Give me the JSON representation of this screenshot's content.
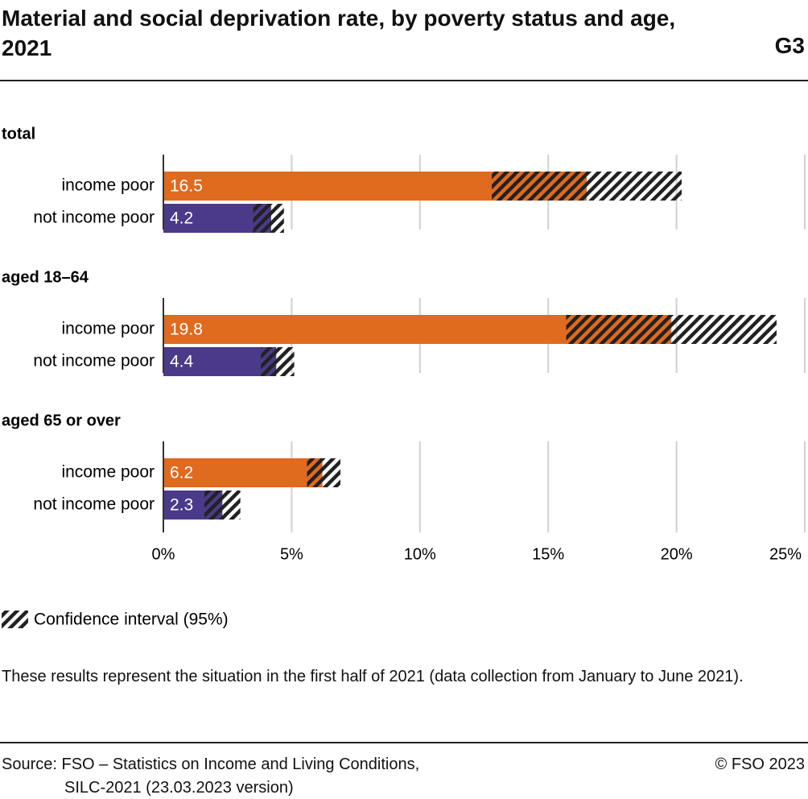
{
  "title": "Material and social deprivation rate, by poverty status and age, 2021",
  "figure_id": "G3",
  "legend_label": "Confidence interval (95%)",
  "note": "These results represent the situation in the first half of 2021 (data collection from January to June 2021).",
  "source": [
    "Source: FSO – Statistics on Income and Living Conditions,",
    "SILC-2021 (23.03.2023 version)"
  ],
  "copyright": "© FSO 2023",
  "chart_data": {
    "type": "bar",
    "orientation": "horizontal",
    "categories": [
      "income poor",
      "not income poor"
    ],
    "colors": [
      "#e06a1e",
      "#4b3a8a"
    ],
    "hatch_color": "#222222",
    "grid": true,
    "xlim": [
      0,
      25
    ],
    "xticks": [
      {
        "value": 0,
        "label": "0%"
      },
      {
        "value": 5,
        "label": "5%"
      },
      {
        "value": 10,
        "label": "10%"
      },
      {
        "value": 15,
        "label": "15%"
      },
      {
        "value": 20,
        "label": "20%"
      },
      {
        "value": 25,
        "label": "25%"
      }
    ],
    "groups": [
      {
        "title": "total",
        "values": [
          16.5,
          4.2
        ],
        "ci_low": [
          12.8,
          3.5
        ],
        "ci_high": [
          20.2,
          4.7
        ]
      },
      {
        "title": "aged 18–64",
        "values": [
          19.8,
          4.4
        ],
        "ci_low": [
          15.7,
          3.8
        ],
        "ci_high": [
          23.9,
          5.1
        ]
      },
      {
        "title": "aged 65 or over",
        "values": [
          6.2,
          2.3
        ],
        "ci_low": [
          5.6,
          1.6
        ],
        "ci_high": [
          6.9,
          3.0
        ]
      }
    ]
  }
}
